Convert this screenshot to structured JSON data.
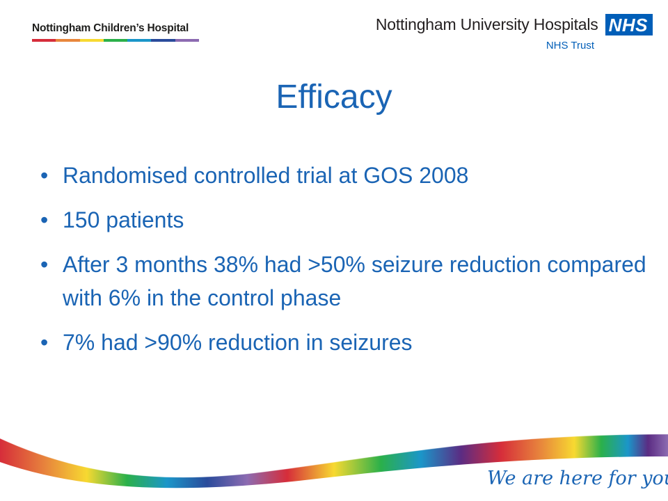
{
  "header": {
    "left_org": "Nottingham Children’s Hospital",
    "right_org": "Nottingham University Hospitals",
    "nhs_logo": "NHS",
    "trust": "NHS Trust"
  },
  "slide": {
    "title": "Efficacy",
    "bullets": [
      "Randomised controlled trial at GOS 2008",
      "150 patients",
      "After 3 months 38% had >50% seizure reduction compared with 6% in the control phase",
      "7% had >90% reduction in seizures"
    ]
  },
  "footer": {
    "tagline": "We are here for you"
  },
  "colors": {
    "title_blue": "#1a64b4",
    "nhs_blue": "#005eb8",
    "rainbow": [
      "#d62d3a",
      "#e8873c",
      "#f7d931",
      "#2bb04a",
      "#1b96c9",
      "#2a4b9b",
      "#5b2c83",
      "#8c6bb1"
    ]
  },
  "bullet_symbol": "•"
}
